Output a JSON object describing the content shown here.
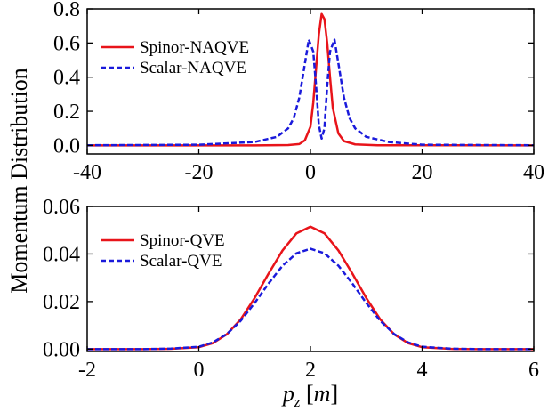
{
  "shared_ylabel": "Momentum Distribution",
  "shared_xlabel": {
    "base": "p",
    "sub": "z",
    "unit_open": " [",
    "unit": "m",
    "unit_close": "]"
  },
  "chart_data": [
    {
      "type": "line",
      "xlim": [
        -40,
        40
      ],
      "ylim": [
        -0.05,
        0.8
      ],
      "xticks": [
        -40,
        -20,
        0,
        20,
        40
      ],
      "xtick_labels": [
        "-40",
        "-20",
        "0",
        "20",
        "40"
      ],
      "yticks": [
        0.0,
        0.2,
        0.4,
        0.6,
        0.8
      ],
      "ytick_labels": [
        "0.0",
        "0.2",
        "0.4",
        "0.6",
        "0.8"
      ],
      "grid": false,
      "legend_position": "top-left",
      "series": [
        {
          "name": "Spinor-NAQVE",
          "color": "#e8141a",
          "style": "solid",
          "x": [
            -40,
            -10,
            -4,
            -2,
            -1,
            0,
            0.5,
            1,
            1.5,
            2,
            2.5,
            3,
            3.5,
            4,
            5,
            6,
            8,
            12,
            40
          ],
          "y": [
            0,
            0,
            0.002,
            0.008,
            0.03,
            0.11,
            0.25,
            0.45,
            0.65,
            0.77,
            0.74,
            0.6,
            0.4,
            0.22,
            0.07,
            0.025,
            0.006,
            0.001,
            0
          ]
        },
        {
          "name": "Scalar-NAQVE",
          "color": "#1a1adb",
          "style": "dashed",
          "x": [
            -40,
            -20,
            -10,
            -6,
            -4,
            -3,
            -2,
            -1,
            -0.3,
            0.5,
            1,
            1.5,
            2,
            2.5,
            3,
            3.5,
            4.3,
            5,
            6,
            7,
            8,
            10,
            14,
            20,
            40
          ],
          "y": [
            0.001,
            0.004,
            0.02,
            0.05,
            0.1,
            0.16,
            0.28,
            0.48,
            0.62,
            0.55,
            0.35,
            0.12,
            0.04,
            0.1,
            0.35,
            0.55,
            0.62,
            0.48,
            0.28,
            0.16,
            0.1,
            0.05,
            0.02,
            0.004,
            0.001
          ]
        }
      ]
    },
    {
      "type": "line",
      "xlim": [
        -2,
        6
      ],
      "ylim": [
        -0.001,
        0.06
      ],
      "xticks": [
        -2,
        0,
        2,
        4,
        6
      ],
      "xtick_labels": [
        "-2",
        "0",
        "2",
        "4",
        "6"
      ],
      "yticks": [
        0.0,
        0.02,
        0.04,
        0.06
      ],
      "ytick_labels": [
        "0.00",
        "0.02",
        "0.04",
        "0.06"
      ],
      "grid": false,
      "legend_position": "top-left",
      "series": [
        {
          "name": "Spinor-QVE",
          "color": "#e8141a",
          "style": "solid",
          "x": [
            -2,
            -1,
            -0.5,
            0,
            0.25,
            0.5,
            0.75,
            1,
            1.25,
            1.5,
            1.75,
            2,
            2.25,
            2.5,
            2.75,
            3,
            3.25,
            3.5,
            3.75,
            4,
            4.5,
            5,
            6
          ],
          "y": [
            0,
            0,
            0.0001,
            0.0008,
            0.0025,
            0.0062,
            0.0125,
            0.0215,
            0.0318,
            0.0415,
            0.0487,
            0.0515,
            0.0487,
            0.0415,
            0.0318,
            0.0215,
            0.0125,
            0.0062,
            0.0025,
            0.0008,
            0.0001,
            0,
            0
          ]
        },
        {
          "name": "Scalar-QVE",
          "color": "#1a1adb",
          "style": "dashed",
          "x": [
            -2,
            -1,
            -0.5,
            0,
            0.25,
            0.5,
            0.75,
            1,
            1.25,
            1.5,
            1.75,
            2,
            2.25,
            2.5,
            2.75,
            3,
            3.25,
            3.5,
            3.75,
            4,
            4.5,
            5,
            6
          ],
          "y": [
            0,
            0,
            0.0002,
            0.001,
            0.0028,
            0.0063,
            0.0119,
            0.0194,
            0.0276,
            0.0351,
            0.0403,
            0.0422,
            0.0403,
            0.0351,
            0.0276,
            0.0194,
            0.0119,
            0.0063,
            0.0028,
            0.001,
            0.0002,
            0,
            0
          ]
        }
      ]
    }
  ]
}
